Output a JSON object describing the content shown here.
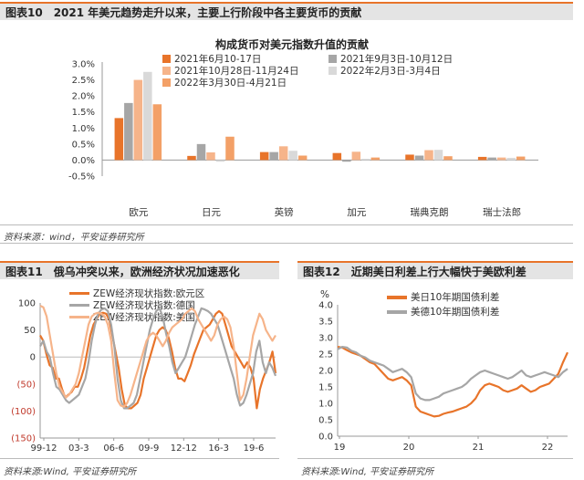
{
  "fig10": {
    "header": "图表10　2021 年美元趋势走升以来，主要上行阶段中各主要货币的贡献",
    "source": "资料来源：wind，平安证券研究所"
  },
  "fig11": {
    "header": "图表11　俄乌冲突以来，欧洲经济状况加速恶化",
    "source": "资料来源:Wind, 平安证券研究所"
  },
  "fig12": {
    "header": "图表12　近期美日利差上行大幅快于美欧利差",
    "source": "资料来源:Wind, 平安证券研究所"
  },
  "colors": {
    "accent": "#e8742a",
    "header_bg": "#e4e4e4"
  },
  "chart_data": [
    {
      "type": "bar",
      "title": "构成货币对美元指数升值的贡献",
      "categories": [
        "欧元",
        "日元",
        "英镑",
        "加元",
        "瑞典克朗",
        "瑞士法郎"
      ],
      "ylim": [
        -0.005,
        0.03
      ],
      "yticks": [
        "-0.5%",
        "0.0%",
        "0.5%",
        "1.0%",
        "1.5%",
        "2.0%",
        "2.5%",
        "3.0%"
      ],
      "legend_position": "top",
      "series": [
        {
          "name": "2021年6月10-17日",
          "color": "#e8742a",
          "values": [
            0.0131,
            0.0013,
            0.0025,
            0.0022,
            0.0017,
            0.001
          ]
        },
        {
          "name": "2021年9月3日-10月12日",
          "color": "#a6a6a6",
          "values": [
            0.0178,
            0.005,
            0.0025,
            -0.0005,
            0.0014,
            0.0008
          ]
        },
        {
          "name": "2021年10月28日-11月24日",
          "color": "#f6b48a",
          "values": [
            0.025,
            0.0024,
            0.0043,
            0.0026,
            0.0031,
            0.0008
          ]
        },
        {
          "name": "2022年2月3日-3月4日",
          "color": "#d9d9d9",
          "values": [
            0.0275,
            -0.0005,
            0.0029,
            0.0004,
            0.0032,
            0.0007
          ]
        },
        {
          "name": "2022年3月30日-4月21日",
          "color": "#f3a067",
          "values": [
            0.0174,
            0.0073,
            0.0014,
            0.0008,
            0.0012,
            0.0011
          ]
        }
      ]
    },
    {
      "type": "line",
      "ylim": [
        -150,
        100
      ],
      "yticks": [
        100,
        50,
        0,
        -50,
        -100,
        -150
      ],
      "ytick_labels": [
        "100",
        "50",
        "0",
        "(50)",
        "(100)",
        "(150)"
      ],
      "xticks": [
        "99-12",
        "03-3",
        "06-6",
        "09-9",
        "12-12",
        "16-3",
        "19-6"
      ],
      "legend_position": "top-left",
      "series": [
        {
          "name": "ZEW经济现状指数:欧元区",
          "color": "#e8742a",
          "values": [
            40,
            30,
            5,
            -15,
            -20,
            -40,
            -40,
            -60,
            -75,
            -70,
            -65,
            -55,
            -55,
            -40,
            -20,
            10,
            40,
            60,
            70,
            80,
            82,
            80,
            70,
            40,
            10,
            -20,
            -60,
            -90,
            -95,
            -95,
            -90,
            -85,
            -70,
            -40,
            -20,
            0,
            20,
            40,
            50,
            55,
            50,
            35,
            10,
            -20,
            -40,
            -40,
            -45,
            -30,
            -15,
            5,
            20,
            35,
            50,
            55,
            60,
            70,
            80,
            85,
            80,
            60,
            40,
            20,
            10,
            0,
            -10,
            -20,
            -10,
            -20,
            -40,
            -95,
            -60,
            -40,
            -25,
            -10,
            10,
            -30
          ]
        },
        {
          "name": "ZEW经济现状指数:德国",
          "color": "#a6a6a6",
          "values": [
            20,
            30,
            10,
            0,
            -30,
            -55,
            -60,
            -70,
            -80,
            -85,
            -80,
            -75,
            -70,
            -55,
            -40,
            -10,
            30,
            60,
            80,
            88,
            90,
            85,
            60,
            20,
            -40,
            -80,
            -95,
            -95,
            -90,
            -85,
            -70,
            -40,
            -10,
            20,
            50,
            70,
            85,
            90,
            75,
            45,
            20,
            -10,
            -30,
            -20,
            -10,
            0,
            20,
            40,
            60,
            75,
            90,
            88,
            85,
            80,
            70,
            60,
            40,
            20,
            0,
            -20,
            -40,
            -70,
            -90,
            -85,
            -70,
            -50,
            -30,
            10,
            30,
            -10,
            -30,
            -10,
            -20,
            -35
          ]
        },
        {
          "name": "ZEW经济现状指数:美国",
          "color": "#f6b48a",
          "values": [
            95,
            92,
            75,
            40,
            5,
            -30,
            -55,
            -65,
            -75,
            -70,
            -60,
            -50,
            -30,
            0,
            30,
            60,
            75,
            80,
            82,
            80,
            75,
            60,
            30,
            -30,
            -80,
            -90,
            -92,
            -85,
            -70,
            -50,
            -30,
            -10,
            10,
            30,
            40,
            45,
            40,
            30,
            20,
            30,
            45,
            55,
            60,
            65,
            70,
            80,
            85,
            90,
            85,
            70,
            60,
            50,
            40,
            30,
            40,
            60,
            70,
            75,
            70,
            55,
            20,
            -30,
            -80,
            -70,
            -40,
            0,
            40,
            60,
            80,
            70,
            50,
            40,
            30,
            40
          ]
        }
      ]
    },
    {
      "type": "line",
      "ylabel": "%",
      "ylim": [
        0,
        4.0
      ],
      "yticks": [
        "0.0",
        "0.5",
        "1.0",
        "1.5",
        "2.0",
        "2.5",
        "3.0",
        "3.5",
        "4.0"
      ],
      "xticks": [
        "19",
        "20",
        "21",
        "22"
      ],
      "legend_position": "top-left",
      "series": [
        {
          "name": "美日10年期国债利差",
          "color": "#e8742a",
          "values": [
            2.72,
            2.7,
            2.62,
            2.55,
            2.5,
            2.45,
            2.35,
            2.25,
            2.2,
            2.05,
            1.9,
            1.75,
            1.7,
            1.75,
            1.8,
            1.7,
            1.55,
            0.9,
            0.75,
            0.7,
            0.65,
            0.6,
            0.62,
            0.68,
            0.72,
            0.75,
            0.8,
            0.85,
            0.9,
            1.0,
            1.15,
            1.4,
            1.55,
            1.6,
            1.55,
            1.5,
            1.4,
            1.35,
            1.4,
            1.45,
            1.55,
            1.45,
            1.35,
            1.4,
            1.5,
            1.55,
            1.6,
            1.75,
            1.9,
            2.25,
            2.55
          ]
        },
        {
          "name": "美德10年期国债利差",
          "color": "#a6a6a6",
          "values": [
            2.65,
            2.72,
            2.7,
            2.6,
            2.55,
            2.45,
            2.4,
            2.3,
            2.25,
            2.2,
            2.15,
            2.05,
            1.95,
            2.0,
            2.05,
            1.95,
            1.8,
            1.3,
            1.15,
            1.1,
            1.1,
            1.15,
            1.2,
            1.3,
            1.35,
            1.4,
            1.45,
            1.5,
            1.6,
            1.75,
            1.85,
            1.95,
            2.0,
            1.95,
            1.9,
            1.85,
            1.8,
            1.75,
            1.8,
            1.9,
            2.0,
            1.85,
            1.8,
            1.85,
            1.9,
            1.95,
            1.9,
            1.85,
            1.8,
            1.95,
            2.05
          ]
        }
      ]
    }
  ]
}
